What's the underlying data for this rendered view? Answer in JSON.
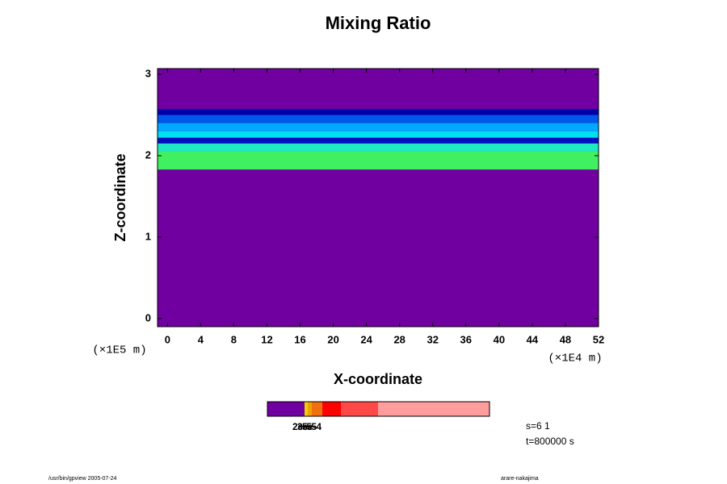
{
  "chart_data": {
    "type": "contour",
    "title": "Mixing Ratio",
    "x_label": "X-coordinate",
    "y_label": "Z-coordinate",
    "x_unit": "(×1E4 m)",
    "y_unit": "(×1E5 m)",
    "xlim": [
      -1.2,
      52
    ],
    "xticks": [
      0,
      4,
      8,
      12,
      16,
      20,
      24,
      28,
      32,
      36,
      40,
      44,
      48,
      52
    ],
    "ylim": [
      -0.1,
      3.07
    ],
    "yticks": [
      0,
      1,
      2,
      3
    ],
    "background": "#7000a0",
    "bands": [
      {
        "z0": 2.57,
        "z1": 2.5,
        "color": "#0000a8"
      },
      {
        "z0": 2.5,
        "z1": 2.4,
        "color": "#0058e8"
      },
      {
        "z0": 2.4,
        "z1": 2.3,
        "color": "#00a8ff"
      },
      {
        "z0": 2.3,
        "z1": 2.22,
        "color": "#00e0f0"
      },
      {
        "z0": 2.22,
        "z1": 2.15,
        "color": "#0010c0"
      },
      {
        "z0": 2.15,
        "z1": 2.05,
        "color": "#20e8c0"
      },
      {
        "z0": 2.05,
        "z1": 1.83,
        "color": "#40f060"
      }
    ],
    "colorbar_labels": [
      "2e-5",
      "3e-5",
      "5e-4"
    ],
    "info": [
      "s=6 1",
      "t=800000 s"
    ],
    "footer_left": "/usr/bin/gpview 2005-07-24",
    "footer_right": "arare-nakajima"
  }
}
